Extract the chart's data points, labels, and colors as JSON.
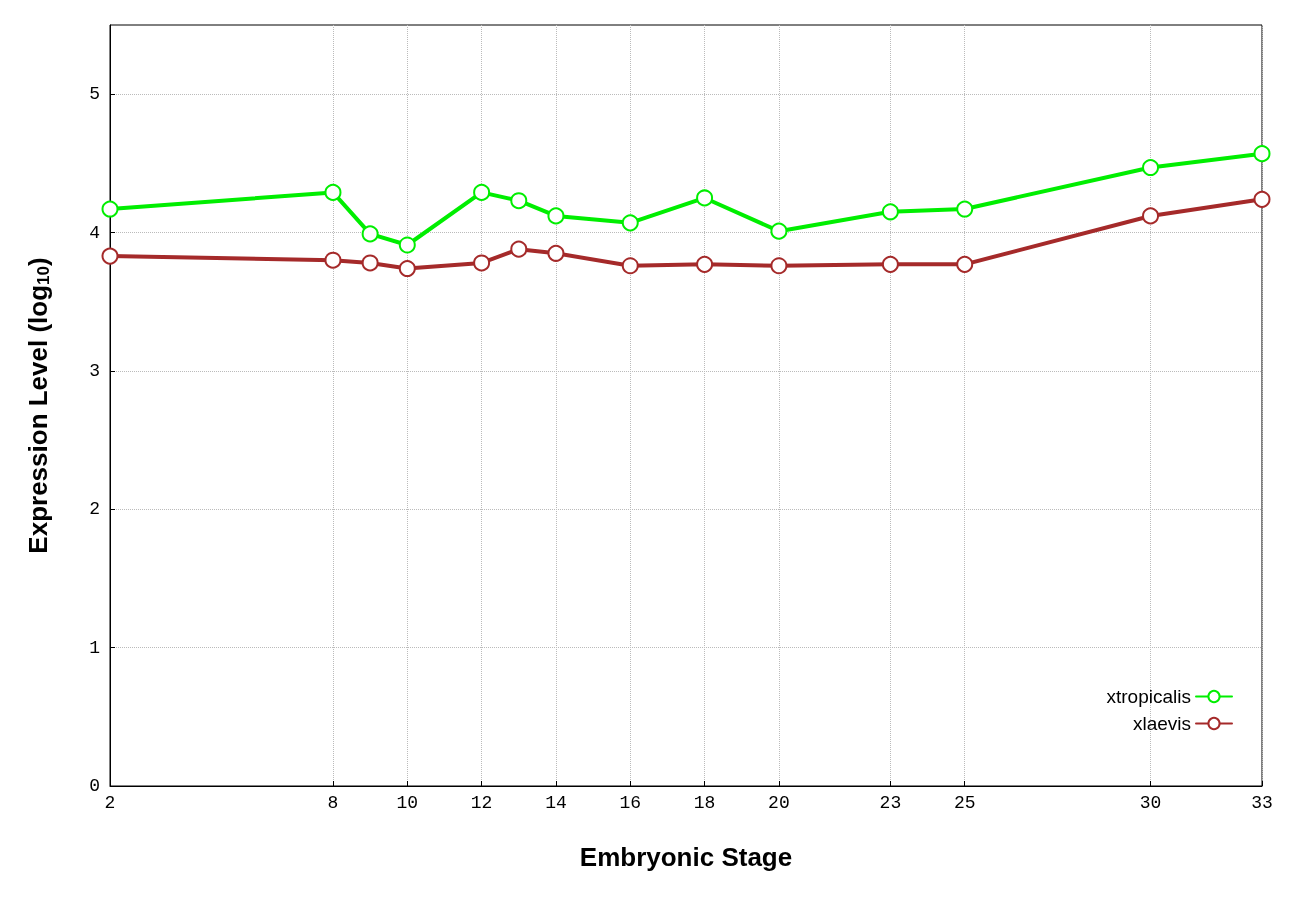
{
  "chart_data": {
    "type": "line",
    "xlabel": "Embryonic Stage",
    "ylabel": "Expression Level (log$_{10}$)",
    "x": [
      2,
      8,
      9,
      10,
      12,
      13,
      14,
      16,
      18,
      20,
      23,
      25,
      30,
      33
    ],
    "xlim": [
      2,
      33
    ],
    "xticks": [
      2,
      8,
      10,
      12,
      14,
      16,
      18,
      20,
      23,
      25,
      30,
      33
    ],
    "ylim": [
      0,
      5.5
    ],
    "yticks": [
      0,
      1,
      2,
      3,
      4,
      5
    ],
    "grid": true,
    "legend": "bottom right",
    "marker": "circle",
    "line_style": "solid",
    "series": [
      {
        "name": "xtropicalis",
        "color": "#00ee00",
        "values": [
          4.17,
          4.29,
          3.99,
          3.91,
          4.29,
          4.23,
          4.12,
          4.07,
          4.25,
          4.01,
          4.15,
          4.17,
          4.47,
          4.57
        ]
      },
      {
        "name": "xlaevis",
        "color": "#a52a2a",
        "values": [
          3.83,
          3.8,
          3.78,
          3.74,
          3.78,
          3.88,
          3.85,
          3.76,
          3.77,
          3.76,
          3.77,
          3.77,
          4.12,
          4.24
        ]
      }
    ]
  }
}
